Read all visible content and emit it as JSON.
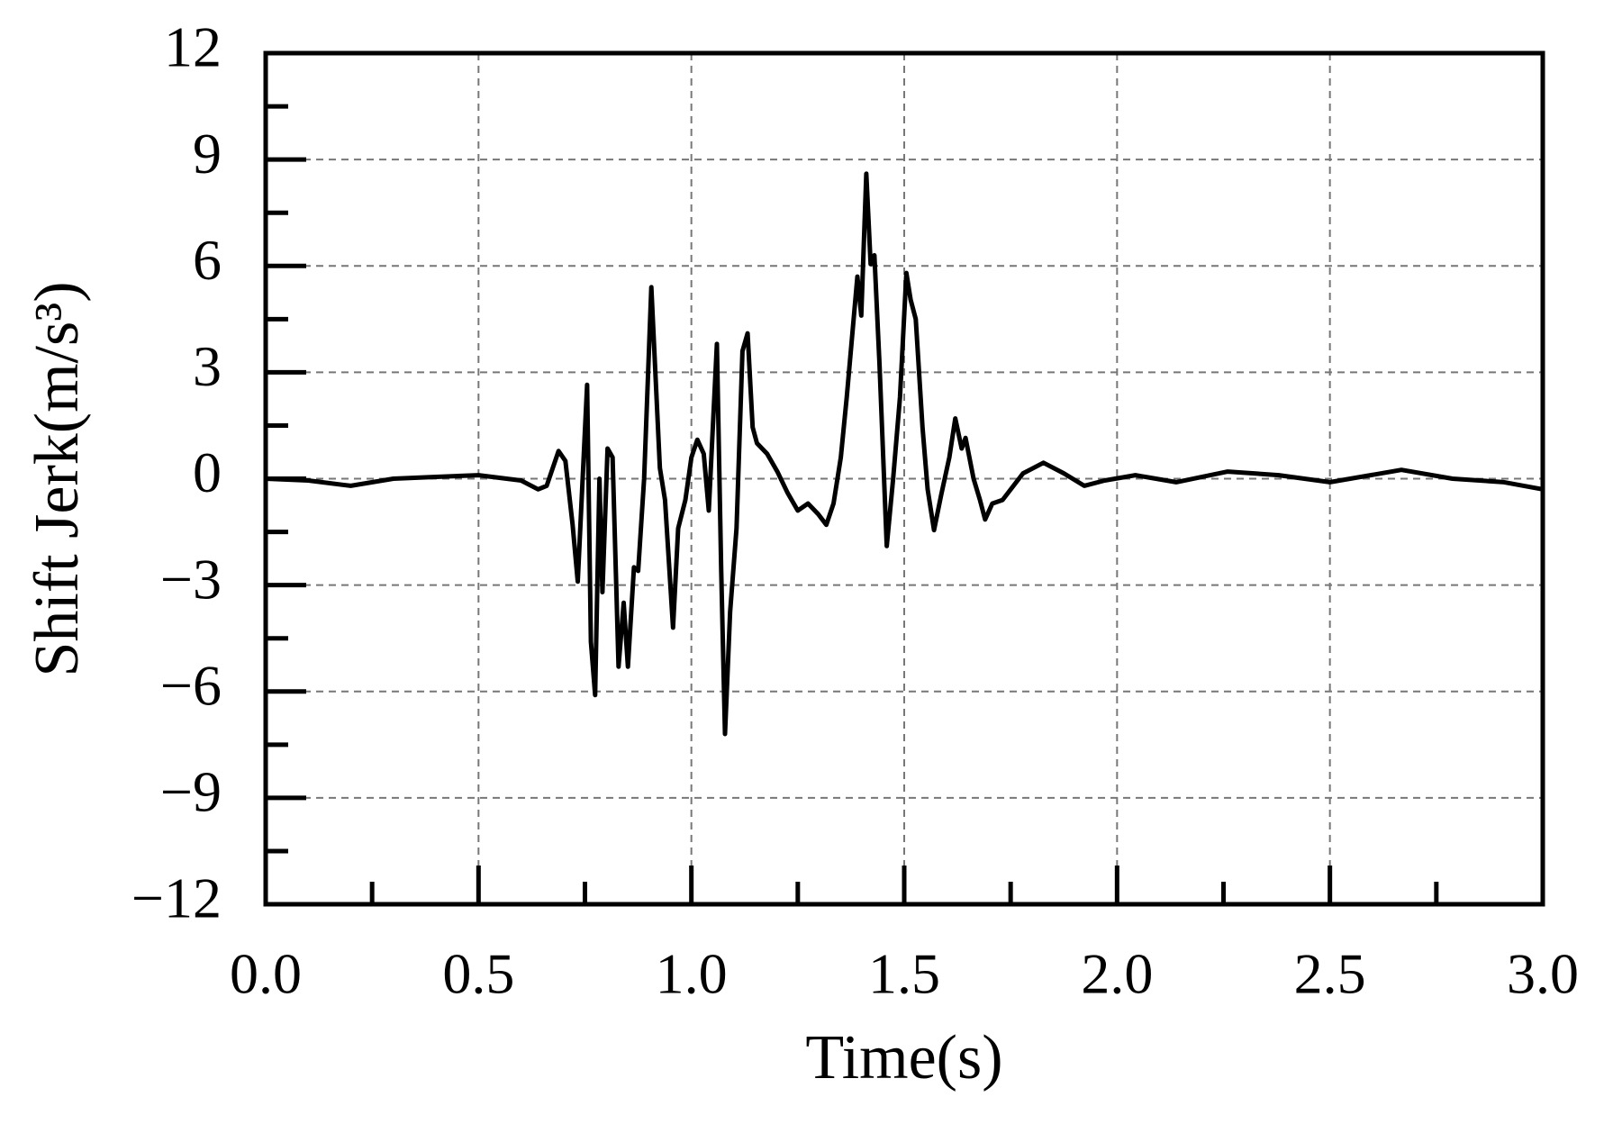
{
  "chart_data": {
    "type": "line",
    "xlabel": "Time(s)",
    "ylabel": "Shift Jerk(m/s³)",
    "grid": true,
    "xlim": [
      0,
      3
    ],
    "ylim": [
      -12,
      12
    ],
    "xticks": [
      {
        "value": 0,
        "label": "0.0"
      },
      0.5,
      {
        "value": 1,
        "label": "1.0"
      },
      1.5,
      {
        "value": 2,
        "label": "2.0"
      },
      2.5,
      {
        "value": 3,
        "label": "3.0"
      }
    ],
    "yticks": [
      {
        "value": -12,
        "label": "−12"
      },
      {
        "value": -9,
        "label": "−9"
      },
      {
        "value": -6,
        "label": "−6"
      },
      {
        "value": -3,
        "label": "−3"
      },
      0,
      3,
      6,
      9,
      12
    ],
    "series": [
      {
        "color": "#000000",
        "x": [
          0,
          0.1,
          0.2,
          0.3,
          0.4,
          0.5,
          0.6,
          0.64,
          0.66,
          0.688,
          0.704,
          0.721,
          0.733,
          0.755,
          0.764,
          0.774,
          0.784,
          0.791,
          0.803,
          0.815,
          0.829,
          0.841,
          0.851,
          0.865,
          0.875,
          0.889,
          0.906,
          0.926,
          0.938,
          0.957,
          0.969,
          0.986,
          1.0,
          1.014,
          1.029,
          1.041,
          1.06,
          1.07,
          1.079,
          1.091,
          1.106,
          1.12,
          1.132,
          1.144,
          1.154,
          1.178,
          1.202,
          1.226,
          1.25,
          1.274,
          1.298,
          1.317,
          1.334,
          1.351,
          1.365,
          1.39,
          1.399,
          1.411,
          1.421,
          1.43,
          1.442,
          1.459,
          1.474,
          1.49,
          1.505,
          1.515,
          1.527,
          1.543,
          1.555,
          1.57,
          1.587,
          1.606,
          1.62,
          1.635,
          1.644,
          1.663,
          1.678,
          1.69,
          1.707,
          1.731,
          1.779,
          1.827,
          1.875,
          1.923,
          1.971,
          2.043,
          2.139,
          2.26,
          2.38,
          2.5,
          2.668,
          2.788,
          2.909,
          3.0
        ],
        "values": [
          0,
          -0.05,
          -0.2,
          0,
          0.05,
          0.1,
          -0.05,
          -0.3,
          -0.2,
          0.78,
          0.5,
          -1.3,
          -2.9,
          2.65,
          -4.6,
          -6.1,
          0,
          -3.2,
          0.85,
          0.6,
          -5.3,
          -3.5,
          -5.3,
          -2.5,
          -2.6,
          0,
          5.4,
          0.3,
          -0.6,
          -4.2,
          -1.4,
          -0.6,
          0.6,
          1.1,
          0.7,
          -0.9,
          3.8,
          -2.6,
          -7.2,
          -3.75,
          -1.4,
          3.6,
          4.1,
          1.45,
          1.0,
          0.7,
          0.2,
          -0.4,
          -0.9,
          -0.7,
          -1.0,
          -1.3,
          -0.7,
          0.6,
          2.3,
          5.7,
          4.6,
          8.6,
          6.05,
          6.3,
          3.2,
          -1.9,
          0,
          2.3,
          5.8,
          5.05,
          4.5,
          1.45,
          -0.3,
          -1.45,
          -0.45,
          0.6,
          1.7,
          0.85,
          1.15,
          0,
          -0.6,
          -1.15,
          -0.7,
          -0.6,
          0.15,
          0.45,
          0.15,
          -0.2,
          -0.05,
          0.1,
          -0.1,
          0.2,
          0.1,
          -0.1,
          0.25,
          0,
          -0.1,
          -0.3
        ]
      }
    ]
  }
}
